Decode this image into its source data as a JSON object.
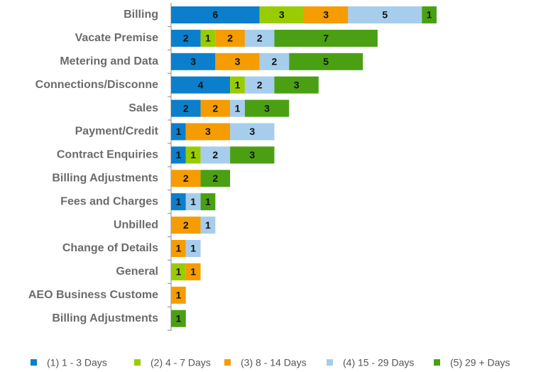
{
  "chart_data": {
    "type": "stacked-barh",
    "categories": [
      "Billing",
      "Vacate Premise",
      "Metering and Data",
      "Connections/Disconne",
      "Sales",
      "Payment/Credit",
      "Contract Enquiries",
      "Billing Adjustments",
      "Fees and Charges",
      "Unbilled",
      "Change of Details",
      "General",
      "AEO Business Custome",
      "Billing Adjustments"
    ],
    "series": [
      {
        "name": "(1) 1 - 3 Days",
        "color": "#0b7fcc",
        "values": [
          6,
          2,
          3,
          4,
          2,
          1,
          1,
          null,
          1,
          null,
          null,
          null,
          null,
          null
        ]
      },
      {
        "name": "(2) 4 - 7 Days",
        "color": "#99cc00",
        "values": [
          3,
          1,
          null,
          1,
          null,
          null,
          1,
          null,
          null,
          null,
          null,
          1,
          null,
          null
        ]
      },
      {
        "name": "(3) 8 - 14 Days",
        "color": "#f59c00",
        "values": [
          3,
          2,
          3,
          null,
          2,
          3,
          null,
          2,
          null,
          2,
          1,
          1,
          1,
          null
        ]
      },
      {
        "name": "(4) 15 - 29 Days",
        "color": "#a6cdec",
        "values": [
          5,
          2,
          2,
          2,
          1,
          3,
          2,
          null,
          1,
          1,
          1,
          null,
          null,
          null
        ]
      },
      {
        "name": "(5) 29 + Days",
        "color": "#4aa012",
        "values": [
          1,
          7,
          5,
          3,
          3,
          null,
          3,
          2,
          1,
          null,
          null,
          null,
          null,
          1
        ]
      }
    ],
    "legend": "bottom"
  }
}
